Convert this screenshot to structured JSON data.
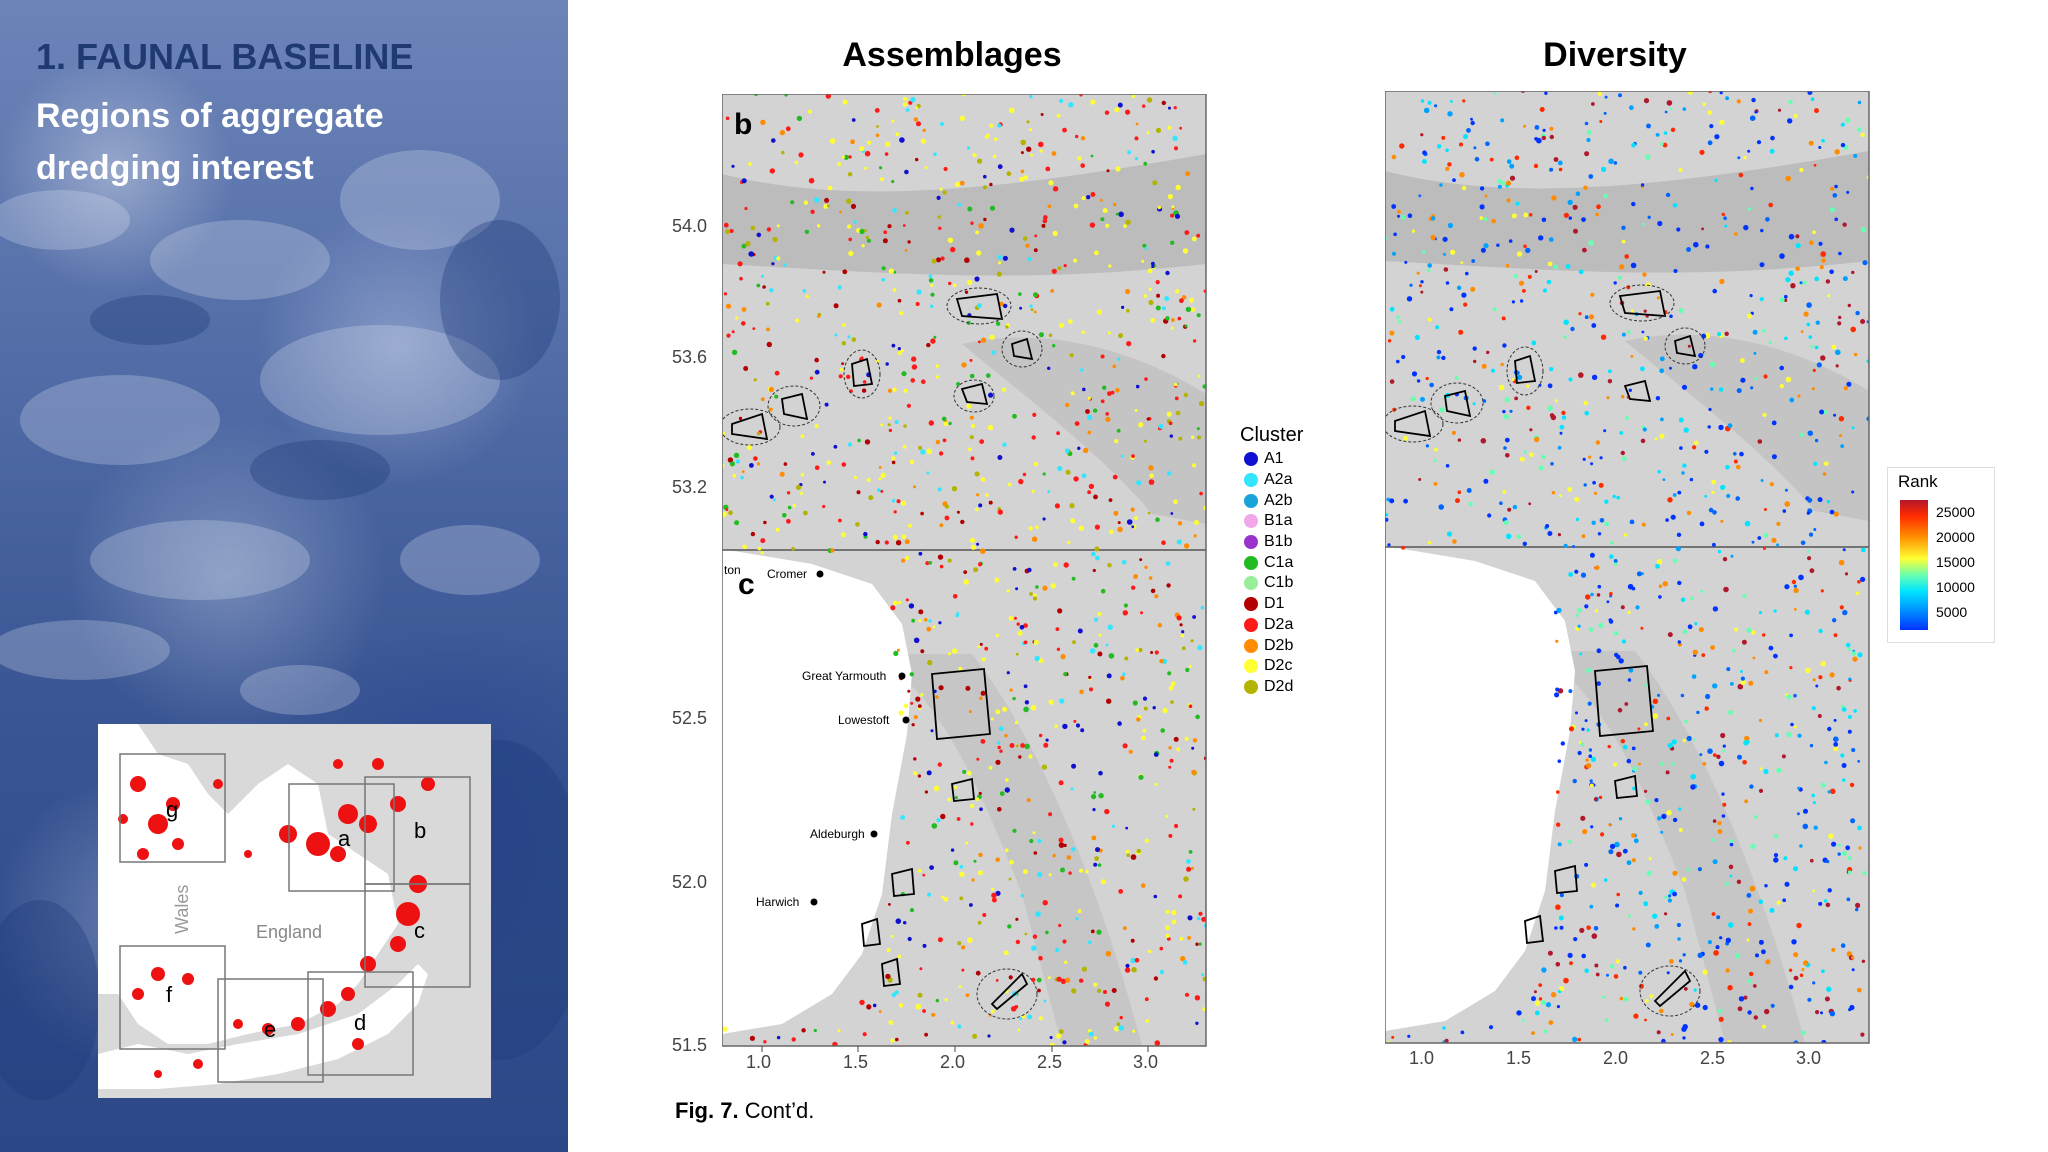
{
  "slide": {
    "title": "1. FAUNAL BASELINE",
    "subtitle": "Regions of aggregate dredging interest"
  },
  "inset_map": {
    "box_labels": [
      "g",
      "a",
      "b",
      "c",
      "f",
      "e",
      "d"
    ],
    "region_labels": [
      "Wales",
      "England"
    ]
  },
  "assemblages_panel": {
    "heading": "Assemblages",
    "panel_labels": [
      "b",
      "c"
    ],
    "y_ticks": [
      "54.0",
      "53.6",
      "53.2",
      "52.5",
      "52.0",
      "51.5"
    ],
    "x_ticks": [
      "1.0",
      "1.5",
      "2.0",
      "2.5",
      "3.0"
    ],
    "places": [
      {
        "name": "ton"
      },
      {
        "name": "Cromer"
      },
      {
        "name": "Great Yarmouth"
      },
      {
        "name": "Lowestoft"
      },
      {
        "name": "Aldeburgh"
      },
      {
        "name": "Harwich"
      }
    ]
  },
  "diversity_panel": {
    "heading": "Diversity",
    "x_ticks": [
      "1.0",
      "1.5",
      "2.0",
      "2.5",
      "3.0"
    ]
  },
  "cluster_legend": {
    "title": "Cluster",
    "items": [
      {
        "label": "A1",
        "color": "#1010d0"
      },
      {
        "label": "A2a",
        "color": "#33e6ff"
      },
      {
        "label": "A2b",
        "color": "#1aa3d9"
      },
      {
        "label": "B1a",
        "color": "#f0a8e8"
      },
      {
        "label": "B1b",
        "color": "#9933cc"
      },
      {
        "label": "C1a",
        "color": "#22bb22"
      },
      {
        "label": "C1b",
        "color": "#99ee99"
      },
      {
        "label": "D1",
        "color": "#b30000"
      },
      {
        "label": "D2a",
        "color": "#ff1a1a"
      },
      {
        "label": "D2b",
        "color": "#ff8c00"
      },
      {
        "label": "D2c",
        "color": "#ffff33"
      },
      {
        "label": "D2d",
        "color": "#b3b300"
      }
    ]
  },
  "rank_legend": {
    "title": "Rank",
    "ticks": [
      "25000",
      "20000",
      "15000",
      "10000",
      "5000"
    ]
  },
  "caption": {
    "label": "Fig. 7.",
    "text": "Cont’d."
  }
}
